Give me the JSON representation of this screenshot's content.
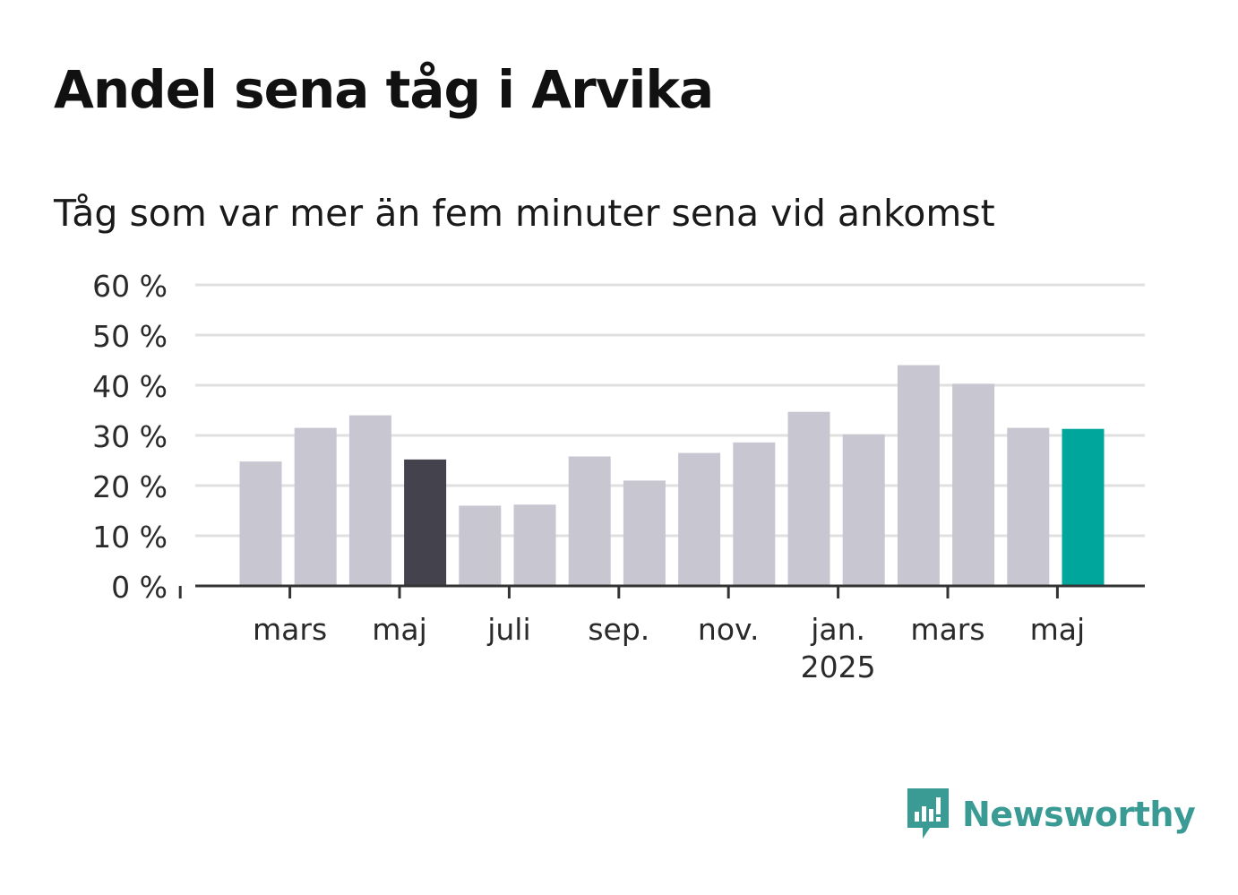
{
  "colors": {
    "bar_default": "#c8c7d1",
    "bar_highlight_dark": "#44424d",
    "bar_highlight_accent": "#00a69c",
    "grid": "#e0e0e0",
    "axis": "#333333",
    "brand": "#3a9a94"
  },
  "chart_data": {
    "type": "bar",
    "title": "Andel sena tåg i Arvika",
    "subtitle": "Tåg som var mer än fem minuter sena vid ankomst",
    "categories": [
      "2024-02",
      "2024-03",
      "2024-04",
      "2024-05",
      "2024-06",
      "2024-07",
      "2024-08",
      "2024-09",
      "2024-10",
      "2024-11",
      "2024-12",
      "2025-01",
      "2025-02",
      "2025-03",
      "2025-04",
      "2025-05"
    ],
    "values": [
      24.8,
      31.5,
      34.0,
      25.2,
      16.0,
      16.2,
      25.8,
      21.0,
      26.5,
      28.6,
      34.7,
      30.2,
      44.0,
      40.3,
      31.5,
      31.3
    ],
    "highlight": {
      "2024-05": "dark",
      "2025-05": "accent"
    },
    "ylim": [
      0,
      60
    ],
    "yticks": [
      0,
      10,
      20,
      30,
      40,
      50,
      60
    ],
    "ytick_labels": [
      "0 %",
      "10 %",
      "20 %",
      "30 %",
      "40 %",
      "50 %",
      "60 %"
    ],
    "xticks": [
      {
        "category": "2024-01",
        "label": "",
        "sublabel": ""
      },
      {
        "category": "2024-03",
        "label": "mars",
        "sublabel": ""
      },
      {
        "category": "2024-05",
        "label": "maj",
        "sublabel": ""
      },
      {
        "category": "2024-07",
        "label": "juli",
        "sublabel": ""
      },
      {
        "category": "2024-09",
        "label": "sep.",
        "sublabel": ""
      },
      {
        "category": "2024-11",
        "label": "nov.",
        "sublabel": ""
      },
      {
        "category": "2025-01",
        "label": "jan.",
        "sublabel": "2025"
      },
      {
        "category": "2025-03",
        "label": "mars",
        "sublabel": ""
      },
      {
        "category": "2025-05",
        "label": "maj",
        "sublabel": ""
      }
    ],
    "xlabel": "",
    "ylabel": "",
    "grid": true
  },
  "brand": {
    "name": "Newsworthy",
    "icon": "newsworthy-logo-icon"
  }
}
